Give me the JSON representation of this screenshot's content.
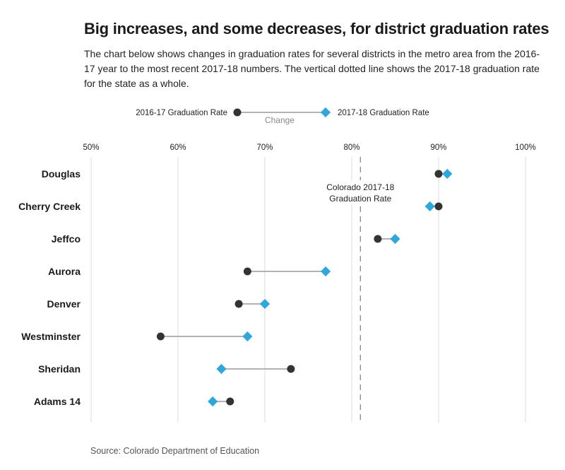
{
  "header": {
    "title": "Big increases, and some decreases, for district graduation rates",
    "subtitle": "The chart below shows changes in graduation rates for several districts in the metro area from the 2016-17 year to the most recent 2017-18 numbers. The vertical dotted line shows the 2017-18 graduation rate for the state as a whole."
  },
  "footer": {
    "source": "Source: Colorado Department of Education"
  },
  "colors": {
    "before": "#333333",
    "after": "#2ea8dc",
    "connector": "#b3b3b3",
    "grid": "#dddddd",
    "reference": "#888888"
  },
  "chart_data": {
    "type": "dumbbell",
    "title": "Big increases, and some decreases, for district graduation rates",
    "xlabel": "",
    "ylabel": "",
    "xlim": [
      50,
      100
    ],
    "x_ticks": [
      50,
      60,
      70,
      80,
      90,
      100
    ],
    "x_tick_labels": [
      "50%",
      "60%",
      "70%",
      "80%",
      "90%",
      "100%"
    ],
    "x_axis_position": "top",
    "grid": true,
    "legend": {
      "placement": "top-center",
      "before_label": "2016-17 Graduation Rate",
      "after_label": "2017-18 Graduation Rate",
      "connector_label": "Change"
    },
    "categories": [
      "Douglas",
      "Cherry Creek",
      "Jeffco",
      "Aurora",
      "Denver",
      "Westminster",
      "Sheridan",
      "Adams 14"
    ],
    "series": [
      {
        "name": "2016-17 Graduation Rate",
        "marker": "circle",
        "values": [
          90,
          90,
          83,
          68,
          67,
          58,
          73,
          66
        ]
      },
      {
        "name": "2017-18 Graduation Rate",
        "marker": "diamond",
        "values": [
          91,
          89,
          85,
          77,
          70,
          68,
          65,
          64
        ]
      }
    ],
    "reference_line": {
      "value": 81,
      "style": "dashed",
      "label_line1": "Colorado 2017-18",
      "label_line2": "Graduation Rate"
    }
  }
}
